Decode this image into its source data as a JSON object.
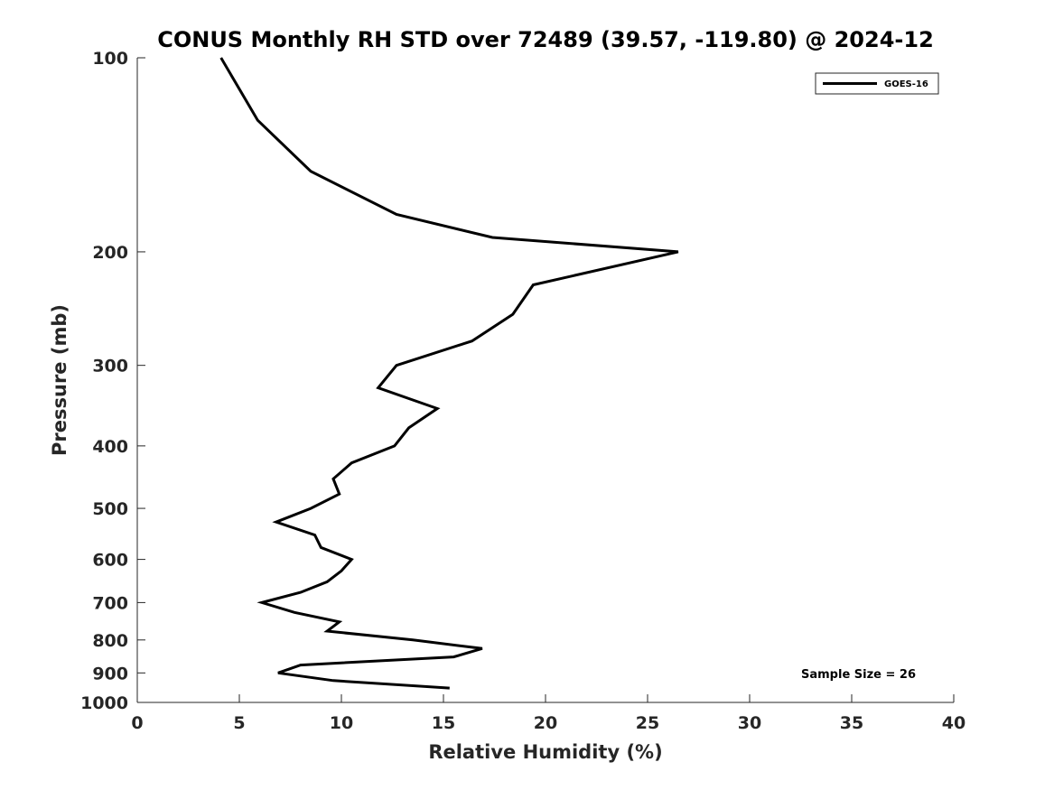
{
  "chart_data": {
    "type": "line",
    "title": "CONUS Monthly RH STD over 72489 (39.57, -119.80) @ 2024-12",
    "xlabel": "Relative Humidity (%)",
    "ylabel": "Pressure (mb)",
    "xlim": [
      0,
      40
    ],
    "ylim": [
      1000,
      100
    ],
    "y_scale": "log",
    "y_reversed": true,
    "x_ticks": [
      "0",
      "5",
      "10",
      "15",
      "20",
      "25",
      "30",
      "35",
      "40"
    ],
    "x_tick_values": [
      0,
      5,
      10,
      15,
      20,
      25,
      30,
      35,
      40
    ],
    "y_ticks": [
      "100",
      "200",
      "300",
      "400",
      "500",
      "600",
      "700",
      "800",
      "900",
      "1000"
    ],
    "y_tick_values": [
      100,
      200,
      300,
      400,
      500,
      600,
      700,
      800,
      900,
      1000
    ],
    "grid": false,
    "legend_position": "top-right",
    "annotation": "Sample Size = 26",
    "color": "#000000",
    "series": [
      {
        "name": "GOES-16",
        "points": [
          {
            "x": 4.1,
            "y": 100
          },
          {
            "x": 5.9,
            "y": 125
          },
          {
            "x": 8.5,
            "y": 150
          },
          {
            "x": 12.7,
            "y": 175
          },
          {
            "x": 17.4,
            "y": 190
          },
          {
            "x": 26.5,
            "y": 200
          },
          {
            "x": 19.4,
            "y": 225
          },
          {
            "x": 18.4,
            "y": 250
          },
          {
            "x": 16.4,
            "y": 275
          },
          {
            "x": 12.7,
            "y": 300
          },
          {
            "x": 11.8,
            "y": 325
          },
          {
            "x": 14.7,
            "y": 350
          },
          {
            "x": 13.3,
            "y": 375
          },
          {
            "x": 12.6,
            "y": 400
          },
          {
            "x": 10.5,
            "y": 425
          },
          {
            "x": 9.6,
            "y": 450
          },
          {
            "x": 9.9,
            "y": 475
          },
          {
            "x": 8.5,
            "y": 500
          },
          {
            "x": 6.8,
            "y": 525
          },
          {
            "x": 8.7,
            "y": 550
          },
          {
            "x": 9.0,
            "y": 575
          },
          {
            "x": 10.5,
            "y": 600
          },
          {
            "x": 10.0,
            "y": 625
          },
          {
            "x": 9.3,
            "y": 650
          },
          {
            "x": 8.0,
            "y": 675
          },
          {
            "x": 6.1,
            "y": 700
          },
          {
            "x": 7.7,
            "y": 725
          },
          {
            "x": 9.9,
            "y": 750
          },
          {
            "x": 9.3,
            "y": 775
          },
          {
            "x": 13.5,
            "y": 800
          },
          {
            "x": 16.9,
            "y": 825
          },
          {
            "x": 15.5,
            "y": 850
          },
          {
            "x": 8.0,
            "y": 875
          },
          {
            "x": 6.9,
            "y": 900
          },
          {
            "x": 9.6,
            "y": 925
          },
          {
            "x": 15.3,
            "y": 950
          }
        ]
      }
    ]
  }
}
